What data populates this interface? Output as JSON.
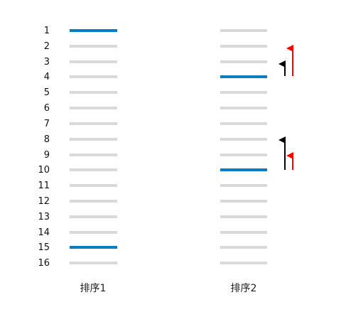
{
  "rows": [
    "1",
    "2",
    "3",
    "4",
    "5",
    "6",
    "7",
    "8",
    "9",
    "10",
    "11",
    "12",
    "13",
    "14",
    "15",
    "16"
  ],
  "columns": [
    {
      "label": "排序1",
      "highlighted": [
        1,
        15
      ]
    },
    {
      "label": "排序2",
      "highlighted": [
        4,
        10
      ]
    }
  ],
  "colors": {
    "inactive": "#d9d9d9",
    "highlight": "#0b7bc4",
    "arrow_black": "#000000",
    "arrow_red": "#ff0000"
  }
}
